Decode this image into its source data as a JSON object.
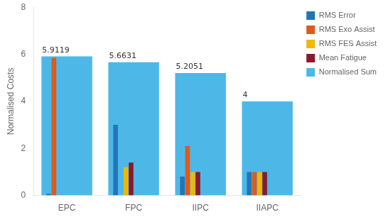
{
  "chart_data": {
    "type": "bar",
    "categories": [
      "EPC",
      "FPC",
      "IIPC",
      "IIAPC"
    ],
    "series": [
      {
        "name": "RMS Error",
        "color": "#2175b8",
        "values": [
          0.07,
          3.0,
          0.8,
          1.0
        ]
      },
      {
        "name": "RMS Exo Assist",
        "color": "#e05a1a",
        "values": [
          5.85,
          0.0,
          2.1,
          1.0
        ]
      },
      {
        "name": "RMS FES Assist",
        "color": "#f0b800",
        "values": [
          0.0,
          1.2,
          1.0,
          1.0
        ]
      },
      {
        "name": "Mean Fatigue",
        "color": "#8b1a2a",
        "values": [
          0.0,
          1.4,
          1.0,
          1.0
        ]
      },
      {
        "name": "Normalised Sum",
        "color": "#4db8e8",
        "values": [
          5.9119,
          5.6631,
          5.2051,
          4.0
        ],
        "data_labels": true
      }
    ],
    "ylabel": "Normalised Costs",
    "ylim": [
      0,
      8
    ],
    "yticks": [
      0,
      2,
      4,
      6,
      8
    ],
    "grid": false,
    "legend": "upper right"
  }
}
